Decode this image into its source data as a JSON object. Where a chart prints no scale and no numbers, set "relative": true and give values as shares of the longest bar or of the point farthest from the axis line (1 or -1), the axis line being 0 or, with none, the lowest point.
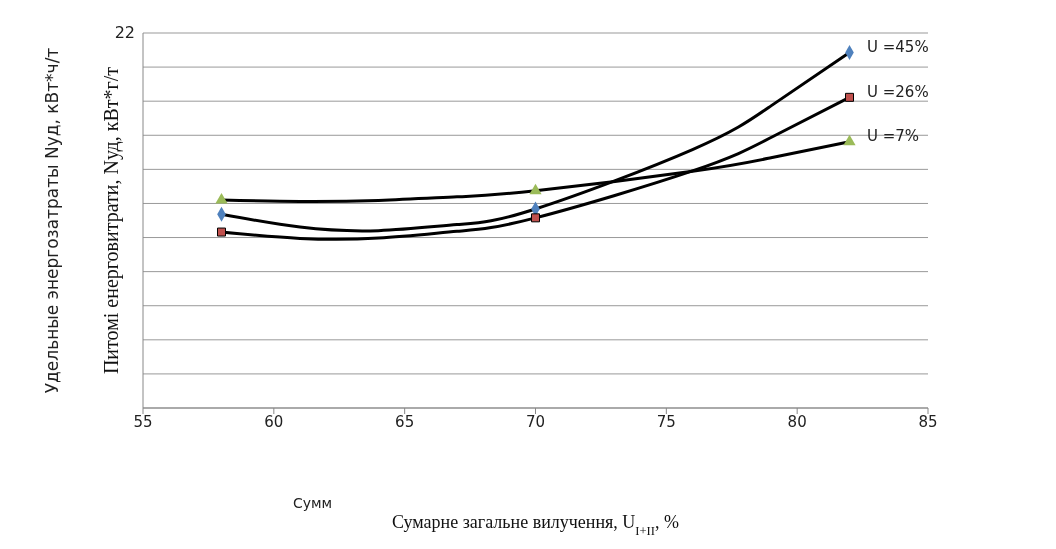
{
  "chart_data": {
    "type": "scatter",
    "relative": true,
    "xlabel": "Сумарне загальне вилучення, U$_{I+II}$, %",
    "ylabel": "Питомі енерговитрати, Nуд, кВт*г/т",
    "xlim": [
      55,
      85
    ],
    "xticks": [
      55,
      60,
      65,
      70,
      75,
      80,
      85
    ],
    "grid": "y",
    "legend": false,
    "annotations": [
      "22",
      "Удельные энергозатраты Nуд, кВт*ч/т",
      "Сумм"
    ],
    "series": [
      {
        "name": "U =45%",
        "marker": "diamond",
        "color": "#4f81bd",
        "x": [
          58,
          70,
          82
        ],
        "values": [
          0.545,
          0.56,
          1
        ]
      },
      {
        "name": "U =26%",
        "marker": "square",
        "color": "#c0504d",
        "x": [
          58,
          70,
          82
        ],
        "values": [
          0.495,
          0.535,
          0.874
        ]
      },
      {
        "name": "U =7%",
        "marker": "triangle",
        "color": "#9bbb59",
        "x": [
          58,
          70,
          82
        ],
        "values": [
          0.585,
          0.611,
          0.749
        ]
      },
      {
        "type": "line",
        "marker": "none",
        "color": "#000000",
        "x": [
          58,
          61,
          64,
          67,
          70,
          76,
          79,
          82
        ],
        "values": [
          0.545,
          0.509,
          0.499,
          0.516,
          0.56,
          0.727,
          0.85,
          1
        ]
      },
      {
        "type": "line",
        "marker": "none",
        "color": "#000000",
        "x": [
          58,
          61,
          64,
          67,
          70,
          76,
          79,
          82
        ],
        "values": [
          0.495,
          0.477,
          0.478,
          0.497,
          0.535,
          0.667,
          0.761,
          0.874
        ]
      },
      {
        "type": "line",
        "marker": "none",
        "color": "#000000",
        "x": [
          58,
          61,
          64,
          67,
          70,
          76,
          79,
          82
        ],
        "values": [
          0.585,
          0.581,
          0.584,
          0.594,
          0.611,
          0.666,
          0.704,
          0.749
        ]
      }
    ]
  }
}
